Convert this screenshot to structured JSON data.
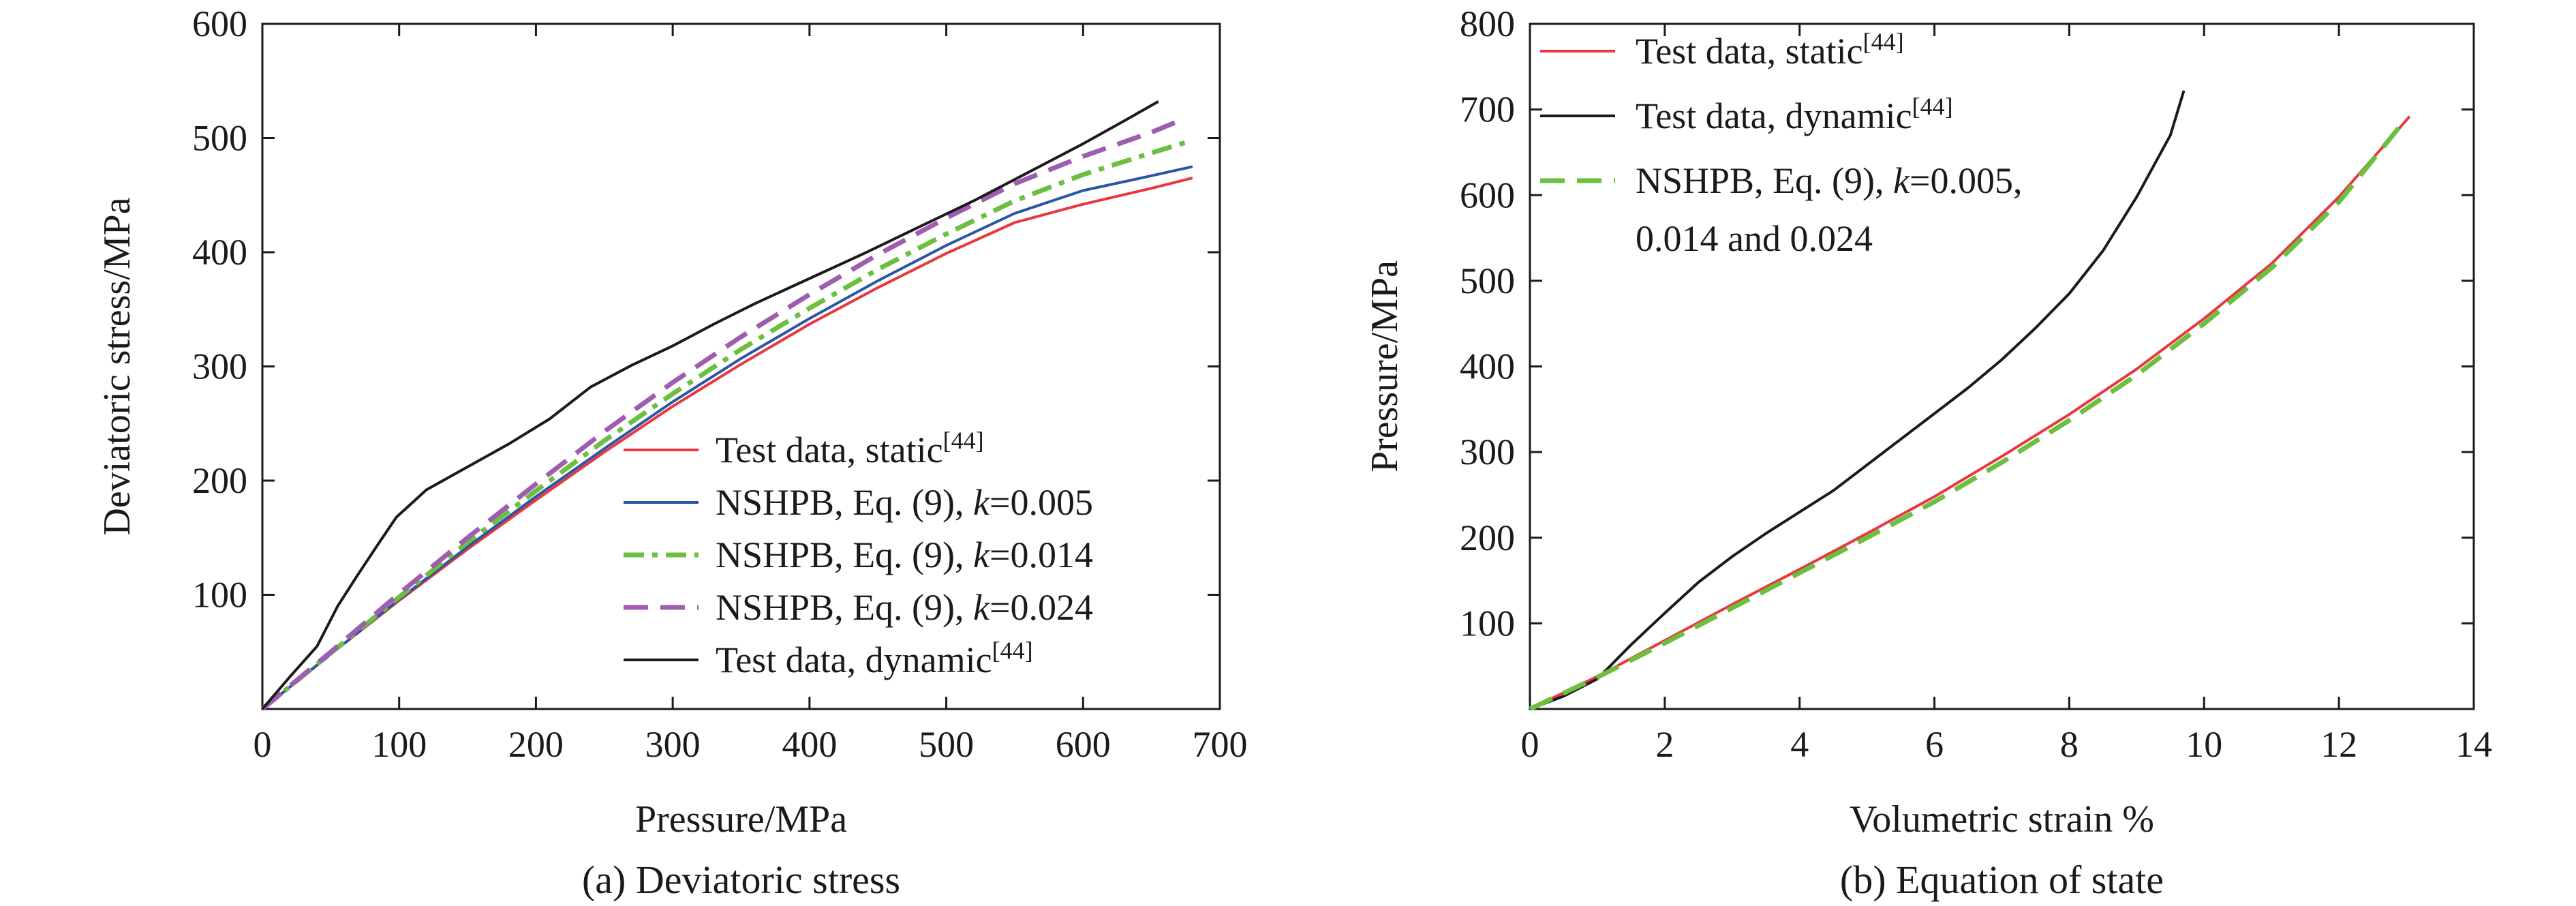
{
  "chart_data": [
    {
      "type": "line",
      "caption": "(a) Deviatoric stress",
      "xlabel": "Pressure/MPa",
      "ylabel": "Deviatoric stress/MPa",
      "xlim": [
        0,
        700
      ],
      "ylim": [
        0,
        600
      ],
      "x_ticks": [
        0,
        100,
        200,
        300,
        400,
        500,
        600,
        700
      ],
      "y_ticks": [
        100,
        200,
        300,
        400,
        500,
        600
      ],
      "grid": false,
      "legend_position": "bottom-right",
      "series": [
        {
          "name": "Test data, static",
          "name_sup": "[44]",
          "name_italic": "",
          "color": "#e8373e",
          "dash": "solid",
          "x": [
            0,
            50,
            100,
            150,
            200,
            250,
            300,
            350,
            400,
            450,
            500,
            550,
            600,
            650,
            680
          ],
          "y": [
            0,
            48,
            95,
            140,
            183,
            225,
            265,
            302,
            337,
            369,
            399,
            426,
            442,
            456,
            465
          ]
        },
        {
          "name": "NSHPB, Eq. (9), ",
          "name_sup": "",
          "name_italic": "k",
          "name_suffix": "=0.005",
          "color": "#2b55a5",
          "dash": "solid",
          "x": [
            0,
            50,
            100,
            150,
            200,
            250,
            300,
            350,
            400,
            450,
            500,
            550,
            600,
            650,
            680
          ],
          "y": [
            0,
            48,
            96,
            142,
            186,
            228,
            269,
            307,
            342,
            375,
            406,
            434,
            454,
            467,
            475
          ]
        },
        {
          "name": "NSHPB, Eq. (9), ",
          "name_sup": "",
          "name_italic": "k",
          "name_suffix": "=0.014",
          "color": "#6cbf3f",
          "dash": "dashdot",
          "x": [
            0,
            50,
            100,
            150,
            200,
            250,
            300,
            350,
            400,
            450,
            500,
            550,
            600,
            650,
            680
          ],
          "y": [
            0,
            49,
            98,
            146,
            191,
            235,
            276,
            315,
            351,
            385,
            416,
            445,
            468,
            487,
            498
          ]
        },
        {
          "name": "NSHPB, Eq. (9), ",
          "name_sup": "",
          "name_italic": "k",
          "name_suffix": "=0.024",
          "color": "#a05cb0",
          "dash": "dashed",
          "x": [
            0,
            50,
            100,
            150,
            200,
            250,
            300,
            350,
            400,
            450,
            500,
            550,
            600,
            650,
            670
          ],
          "y": [
            0,
            50,
            101,
            150,
            197,
            243,
            286,
            326,
            363,
            398,
            430,
            460,
            484,
            505,
            515
          ]
        },
        {
          "name": "Test data, dynamic",
          "name_sup": "[44]",
          "name_italic": "",
          "color": "#1a1a1a",
          "dash": "solid",
          "x": [
            0,
            20,
            40,
            55,
            70,
            85,
            98,
            120,
            150,
            180,
            210,
            240,
            270,
            300,
            330,
            360,
            400,
            440,
            480,
            520,
            560,
            600,
            630,
            655
          ],
          "y": [
            0,
            28,
            55,
            90,
            118,
            145,
            168,
            192,
            212,
            232,
            254,
            282,
            301,
            318,
            337,
            355,
            377,
            399,
            422,
            445,
            470,
            495,
            515,
            532
          ]
        }
      ]
    },
    {
      "type": "line",
      "caption": "(b) Equation of state",
      "xlabel": "Volumetric strain %",
      "ylabel": "Pressure/MPa",
      "xlim": [
        0,
        14
      ],
      "ylim": [
        0,
        800
      ],
      "x_ticks": [
        0,
        2,
        4,
        6,
        8,
        10,
        12,
        14
      ],
      "y_ticks": [
        100,
        200,
        300,
        400,
        500,
        600,
        700,
        800
      ],
      "grid": false,
      "legend_position": "top-left",
      "legend_extra_line": "0.014 and 0.024",
      "series": [
        {
          "name": "Test data, static",
          "name_sup": "[44]",
          "name_italic": "",
          "color": "#e8373e",
          "dash": "solid",
          "x": [
            0,
            1,
            2,
            3,
            4,
            5,
            6,
            7,
            8,
            9,
            10,
            11,
            12,
            13.05
          ],
          "y": [
            0,
            38,
            80,
            122,
            163,
            205,
            248,
            295,
            344,
            397,
            456,
            520,
            598,
            692
          ]
        },
        {
          "name": "Test data, dynamic",
          "name_sup": "[44]",
          "name_italic": "",
          "color": "#1a1a1a",
          "dash": "solid",
          "x": [
            0,
            0.5,
            1,
            1.5,
            2,
            2.5,
            3,
            3.5,
            4,
            4.5,
            5,
            5.5,
            6,
            6.5,
            7,
            7.5,
            8,
            8.5,
            9,
            9.5,
            9.7
          ],
          "y": [
            0,
            15,
            35,
            75,
            112,
            148,
            178,
            205,
            230,
            255,
            285,
            315,
            345,
            375,
            408,
            445,
            485,
            535,
            598,
            670,
            722
          ]
        },
        {
          "name": "NSHPB, Eq. (9), ",
          "name_sup": "",
          "name_italic": "k",
          "name_suffix": "=0.005,",
          "color": "#6cbf3f",
          "dash": "dashed",
          "x": [
            0,
            1,
            2,
            3,
            4,
            5,
            6,
            7,
            8,
            9,
            10,
            11,
            12,
            12.9
          ],
          "y": [
            0,
            37,
            77,
            118,
            159,
            200,
            242,
            288,
            337,
            390,
            450,
            515,
            592,
            680
          ]
        }
      ]
    }
  ]
}
